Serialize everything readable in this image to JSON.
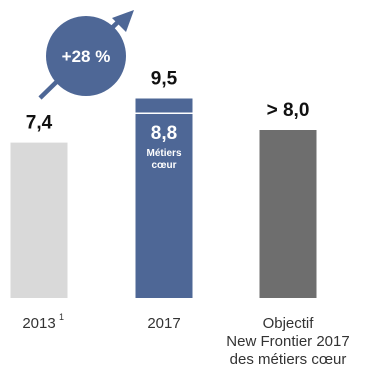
{
  "chart_data": {
    "type": "bar",
    "categories": [
      "2013",
      "2017",
      "Objectif New Frontier 2017 des métiers cœur"
    ],
    "category_display": [
      {
        "lines": [
          "2013"
        ],
        "superscript": "1"
      },
      {
        "lines": [
          "2017"
        ]
      },
      {
        "lines": [
          "Objectif",
          "New Frontier 2017",
          "des métiers cœur"
        ]
      }
    ],
    "values": [
      7.4,
      9.5,
      8.0
    ],
    "value_labels": [
      "7,4",
      "9,5",
      "> 8,0"
    ],
    "stacked_inner": {
      "category_index": 1,
      "value": 8.8,
      "label": "8,8",
      "sublabel_lines": [
        "Métiers",
        "cœur"
      ]
    },
    "growth_badge": {
      "label": "+28 %"
    },
    "ylim": [
      0,
      10
    ],
    "grid": false,
    "colors": {
      "bar_2013": "#d9d9d9",
      "bar_2017": "#4e6796",
      "bar_2017_divider": "#ffffff",
      "bar_objectif": "#6e6e6e",
      "badge": "#4e6796",
      "arrow": "#4e6796"
    }
  }
}
